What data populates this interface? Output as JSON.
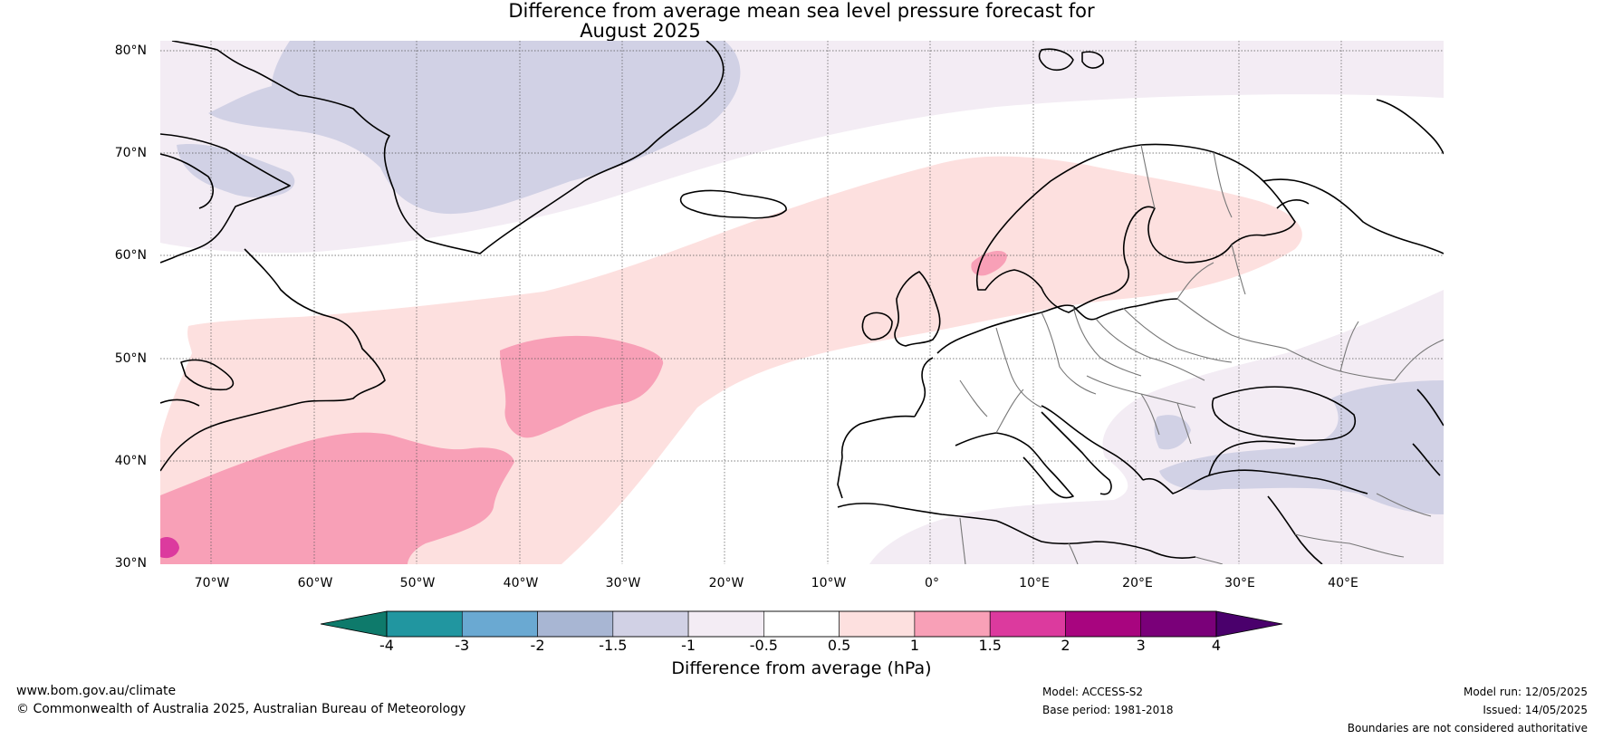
{
  "title": {
    "line1": "Difference from average mean sea level pressure forecast for",
    "line2": "August 2025"
  },
  "map": {
    "region": "North Atlantic and Europe",
    "lat_labels": [
      "80°N",
      "70°N",
      "60°N",
      "50°N",
      "40°N",
      "30°N"
    ],
    "lon_labels": [
      "70°W",
      "60°W",
      "50°W",
      "40°W",
      "30°W",
      "20°W",
      "10°W",
      "0°",
      "10°E",
      "20°E",
      "30°E",
      "40°E"
    ],
    "gridlines": "dotted"
  },
  "colorbar": {
    "label": "Difference from average (hPa)",
    "ticks": [
      "-4",
      "-3",
      "-2",
      "-1.5",
      "-1",
      "-0.5",
      "0.5",
      "1",
      "1.5",
      "2",
      "3",
      "4"
    ],
    "colors": [
      "#0e7a6b",
      "#2196a0",
      "#6aa9d2",
      "#a8b6d3",
      "#d1d1e5",
      "#f3ecf4",
      "#ffffff",
      "#fde0df",
      "#f8a0b7",
      "#dc3a9e",
      "#a8057f",
      "#7a0079",
      "#4a006c"
    ]
  },
  "footer": {
    "website": "www.bom.gov.au/climate",
    "copyright": "© Commonwealth of Australia 2025, Australian Bureau of Meteorology",
    "model": "Model: ACCESS-S2",
    "base_period": "Base period: 1981-2018",
    "model_run": "Model run: 12/05/2025",
    "issued": "Issued: 14/05/2025",
    "disclaimer": "Boundaries are not considered authoritative"
  }
}
